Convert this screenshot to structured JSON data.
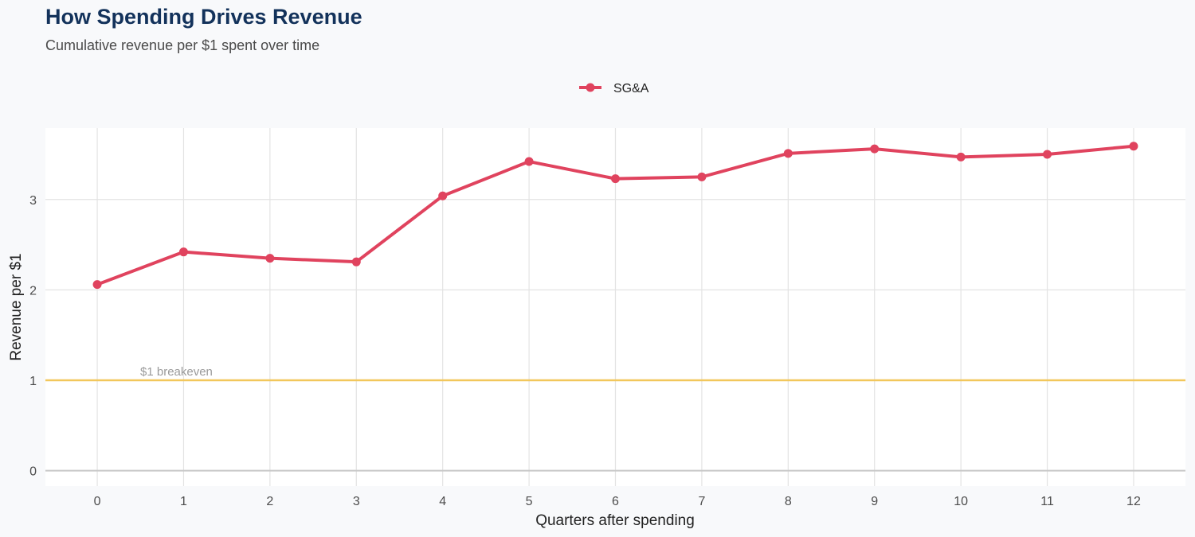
{
  "colors": {
    "background": "#f8f9fb",
    "panel": "#ffffff",
    "grid": "#e3e3e3",
    "series": "#e0435e",
    "reference_line": "#f2c75c",
    "title": "#13325b"
  },
  "chart_data": {
    "type": "line",
    "title": "How Spending Drives Revenue",
    "subtitle": "Cumulative revenue per $1 spent over time",
    "xlabel": "Quarters after spending",
    "ylabel": "Revenue per $1",
    "x": [
      0,
      1,
      2,
      3,
      4,
      5,
      6,
      7,
      8,
      9,
      10,
      11,
      12
    ],
    "x_tick_labels": [
      "0",
      "1",
      "2",
      "3",
      "4",
      "5",
      "6",
      "7",
      "8",
      "9",
      "10",
      "11",
      "12"
    ],
    "y_ticks": [
      0,
      1,
      2,
      3
    ],
    "y_tick_labels": [
      "0",
      "1",
      "2",
      "3"
    ],
    "xlim": [
      -0.6,
      12.6
    ],
    "ylim": [
      -0.17,
      3.79
    ],
    "grid": true,
    "legend_position": "top-center",
    "series": [
      {
        "name": "SG&A",
        "values": [
          2.06,
          2.42,
          2.35,
          2.31,
          3.04,
          3.42,
          3.23,
          3.25,
          3.51,
          3.56,
          3.47,
          3.5,
          3.59
        ]
      }
    ],
    "annotations": [
      {
        "type": "hline",
        "y": 1,
        "label": "$1 breakeven"
      }
    ]
  }
}
